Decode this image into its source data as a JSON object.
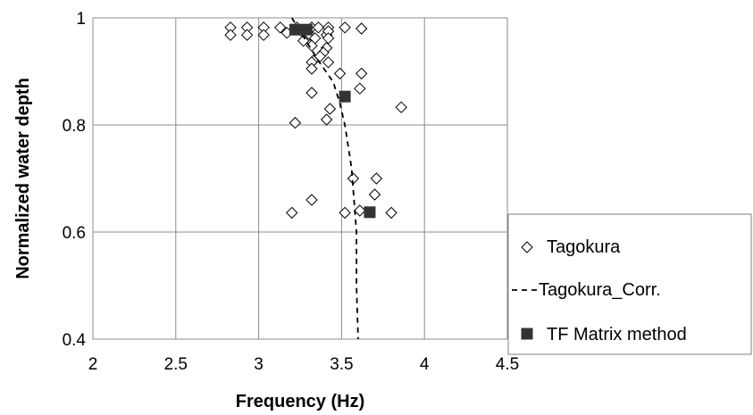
{
  "chart_data": {
    "type": "scatter",
    "xlabel": "Frequency (Hz)",
    "ylabel": "Normalized water depth",
    "xlim": [
      2,
      4.5
    ],
    "ylim": [
      0.4,
      1
    ],
    "x_ticks": [
      "2",
      "2.5",
      "3",
      "3.5",
      "4",
      "4.5"
    ],
    "y_ticks": [
      "0.4",
      "0.6",
      "0.8",
      "1"
    ],
    "grid": true,
    "legend_position": "bottom-right",
    "series": [
      {
        "name": "Tagokura",
        "kind": "scatter",
        "marker": "diamond-open",
        "color": "#000000",
        "points": [
          [
            2.83,
            0.982
          ],
          [
            2.83,
            0.968
          ],
          [
            2.93,
            0.982
          ],
          [
            2.93,
            0.968
          ],
          [
            3.03,
            0.982
          ],
          [
            3.03,
            0.968
          ],
          [
            3.13,
            0.982
          ],
          [
            3.23,
            0.982
          ],
          [
            3.32,
            0.982
          ],
          [
            3.36,
            0.982
          ],
          [
            3.42,
            0.982
          ],
          [
            3.52,
            0.982
          ],
          [
            3.62,
            0.98
          ],
          [
            3.17,
            0.972
          ],
          [
            3.27,
            0.972
          ],
          [
            3.31,
            0.968
          ],
          [
            3.41,
            0.968
          ],
          [
            3.42,
            0.975
          ],
          [
            3.34,
            0.962
          ],
          [
            3.42,
            0.962
          ],
          [
            3.27,
            0.957
          ],
          [
            3.32,
            0.948
          ],
          [
            3.41,
            0.944
          ],
          [
            3.39,
            0.935
          ],
          [
            3.37,
            0.928
          ],
          [
            3.33,
            0.92
          ],
          [
            3.32,
            0.917
          ],
          [
            3.42,
            0.917
          ],
          [
            3.32,
            0.905
          ],
          [
            3.49,
            0.896
          ],
          [
            3.62,
            0.896
          ],
          [
            3.61,
            0.868
          ],
          [
            3.32,
            0.86
          ],
          [
            3.86,
            0.833
          ],
          [
            3.43,
            0.83
          ],
          [
            3.41,
            0.81
          ],
          [
            3.22,
            0.804
          ],
          [
            3.71,
            0.7
          ],
          [
            3.57,
            0.7
          ],
          [
            3.7,
            0.67
          ],
          [
            3.32,
            0.66
          ],
          [
            3.2,
            0.636
          ],
          [
            3.52,
            0.636
          ],
          [
            3.61,
            0.64
          ],
          [
            3.8,
            0.636
          ]
        ]
      },
      {
        "name": "Tagokura_Corr.",
        "kind": "line",
        "dash": true,
        "color": "#000000",
        "points": [
          [
            3.2,
            1.0
          ],
          [
            3.28,
            0.96
          ],
          [
            3.36,
            0.92
          ],
          [
            3.45,
            0.88
          ],
          [
            3.49,
            0.84
          ],
          [
            3.52,
            0.8
          ],
          [
            3.54,
            0.76
          ],
          [
            3.56,
            0.72
          ],
          [
            3.57,
            0.68
          ],
          [
            3.58,
            0.64
          ],
          [
            3.59,
            0.6
          ],
          [
            3.59,
            0.5
          ],
          [
            3.6,
            0.4
          ]
        ]
      },
      {
        "name": "TF Matrix method",
        "kind": "scatter",
        "marker": "square-filled",
        "color": "#333333",
        "points": [
          [
            3.22,
            0.978
          ],
          [
            3.29,
            0.978
          ],
          [
            3.52,
            0.853
          ],
          [
            3.67,
            0.637
          ]
        ]
      }
    ]
  }
}
